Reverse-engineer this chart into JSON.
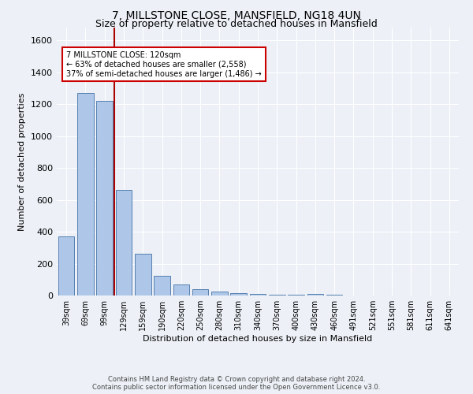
{
  "title1": "7, MILLSTONE CLOSE, MANSFIELD, NG18 4UN",
  "title2": "Size of property relative to detached houses in Mansfield",
  "xlabel": "Distribution of detached houses by size in Mansfield",
  "ylabel": "Number of detached properties",
  "categories": [
    "39sqm",
    "69sqm",
    "99sqm",
    "129sqm",
    "159sqm",
    "190sqm",
    "220sqm",
    "250sqm",
    "280sqm",
    "310sqm",
    "340sqm",
    "370sqm",
    "400sqm",
    "430sqm",
    "460sqm",
    "491sqm",
    "521sqm",
    "551sqm",
    "581sqm",
    "611sqm",
    "641sqm"
  ],
  "values": [
    370,
    1270,
    1220,
    660,
    260,
    125,
    70,
    38,
    25,
    15,
    8,
    5,
    3,
    12,
    3,
    2,
    0,
    0,
    0,
    0,
    0
  ],
  "bar_color": "#aec6e8",
  "bar_edge_color": "#5580b0",
  "bar_width": 0.85,
  "vline_x": 2.5,
  "vline_color": "#aa0000",
  "ylim": [
    0,
    1680
  ],
  "yticks": [
    0,
    200,
    400,
    600,
    800,
    1000,
    1200,
    1400,
    1600
  ],
  "annotation_line1": "7 MILLSTONE CLOSE: 120sqm",
  "annotation_line2": "← 63% of detached houses are smaller (2,558)",
  "annotation_line3": "37% of semi-detached houses are larger (1,486) →",
  "annotation_box_color": "#ffffff",
  "annotation_box_edge": "#cc0000",
  "footnote": "Contains HM Land Registry data © Crown copyright and database right 2024.\nContains public sector information licensed under the Open Government Licence v3.0.",
  "background_color": "#edf1f7",
  "plot_bg_color": "#edf1f7",
  "grid_color": "#ffffff",
  "title1_fontsize": 10,
  "title2_fontsize": 9,
  "tick_fontsize": 7,
  "ylabel_fontsize": 8,
  "xlabel_fontsize": 8,
  "footnote_fontsize": 6
}
